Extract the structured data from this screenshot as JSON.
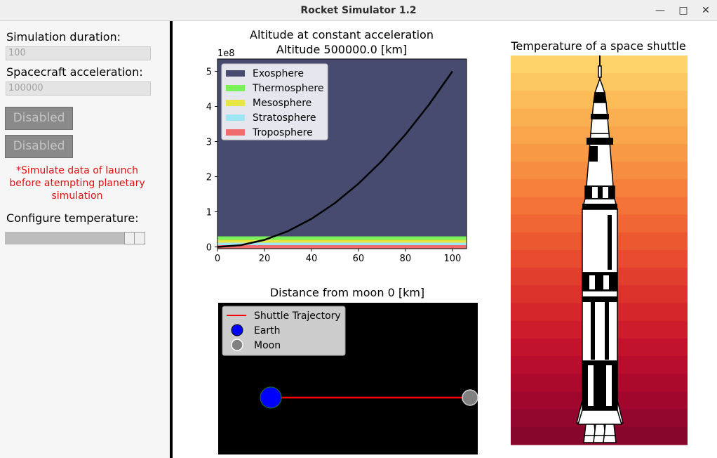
{
  "window": {
    "title": "Rocket Simulator 1.2",
    "minimize_glyph": "—",
    "maximize_glyph": "□",
    "close_glyph": "✕"
  },
  "sidebar": {
    "duration_label": "Simulation duration:",
    "duration_value": "100",
    "acceleration_label": "Spacecraft acceleration:",
    "acceleration_value": "100000",
    "button1_label": "Disabled",
    "button2_label": "Disabled",
    "warning_line1": "*Simulate data of launch",
    "warning_line2": "before atempting planetary",
    "warning_line3": "simulation",
    "temperature_label": "Configure temperature:",
    "temperature_level": 0.85
  },
  "altitude_chart": {
    "title_line1": "Altitude at constant acceleration",
    "title_line2": "Altitude 500000.0 [km]",
    "offset_text": "1e8",
    "legend": [
      {
        "label": "Exosphere",
        "color": "#474b70"
      },
      {
        "label": "Thermosphere",
        "color": "#7af05a"
      },
      {
        "label": "Mesosphere",
        "color": "#e8e645"
      },
      {
        "label": "Stratosphere",
        "color": "#9fe6f5"
      },
      {
        "label": "Troposphere",
        "color": "#f06b6b"
      }
    ]
  },
  "moon_chart": {
    "title": "Distance from moon 0 [km]",
    "legend": [
      {
        "label": "Shuttle Trajectory",
        "color": "#ff0000"
      },
      {
        "label": "Earth",
        "color": "#0000ff"
      },
      {
        "label": "Moon",
        "color": "#808080"
      }
    ]
  },
  "shuttle_panel": {
    "title": "Temperature of a space shuttle"
  },
  "chart_data": [
    {
      "type": "line",
      "title": "Altitude at constant acceleration\nAltitude 500000.0 [km]",
      "offset": "1e8",
      "x_ticks": [
        "0",
        "20",
        "40",
        "60",
        "80",
        "100"
      ],
      "y_ticks": [
        "0",
        "1",
        "2",
        "3",
        "4",
        "5"
      ],
      "xlim": [
        0,
        106
      ],
      "ylim": [
        -0.05,
        5.35
      ],
      "bands": [
        {
          "name": "Exosphere",
          "from": 0.3,
          "to": 5.35,
          "color": "#474b70"
        },
        {
          "name": "Thermosphere",
          "from": 0.2,
          "to": 0.3,
          "color": "#7af05a"
        },
        {
          "name": "Mesosphere",
          "from": 0.12,
          "to": 0.2,
          "color": "#e8e645"
        },
        {
          "name": "Stratosphere",
          "from": 0.05,
          "to": 0.12,
          "color": "#9fe6f5"
        },
        {
          "name": "Troposphere",
          "from": -0.05,
          "to": 0.05,
          "color": "#f06b6b"
        }
      ],
      "series": [
        {
          "x": [
            0,
            10,
            20,
            30,
            40,
            50,
            60,
            70,
            80,
            90,
            100
          ],
          "y": [
            0,
            0.05,
            0.2,
            0.45,
            0.8,
            1.25,
            1.8,
            2.45,
            3.2,
            4.05,
            5.0
          ],
          "color": "#000000"
        }
      ],
      "legend_position": "top-left",
      "grid": false
    },
    {
      "type": "scatter",
      "title": "Distance from moon 0 [km]",
      "background": "#000000",
      "series": [
        {
          "name": "Shuttle Trajectory",
          "kind": "line",
          "x": [
            0,
            1
          ],
          "y": [
            0,
            0
          ],
          "color": "#ff0000"
        },
        {
          "name": "Earth",
          "kind": "point",
          "x": [
            0
          ],
          "y": [
            0
          ],
          "color": "#0000ff"
        },
        {
          "name": "Moon",
          "kind": "point",
          "x": [
            1
          ],
          "y": [
            0
          ],
          "color": "#808080"
        }
      ],
      "legend_position": "top-left",
      "axes_visible": false
    }
  ],
  "temperature_gradient": [
    "#fdd36a",
    "#fcc85f",
    "#fbbc57",
    "#fab050",
    "#f9a54b",
    "#f89945",
    "#f68d40",
    "#f5803c",
    "#f37338",
    "#f06634",
    "#ec5931",
    "#e84b2f",
    "#e23e2d",
    "#dc322c",
    "#d5262b",
    "#cd1c2b",
    "#c3132c",
    "#b80d2c",
    "#ad092d",
    "#a1072d",
    "#94062d",
    "#87062b"
  ]
}
